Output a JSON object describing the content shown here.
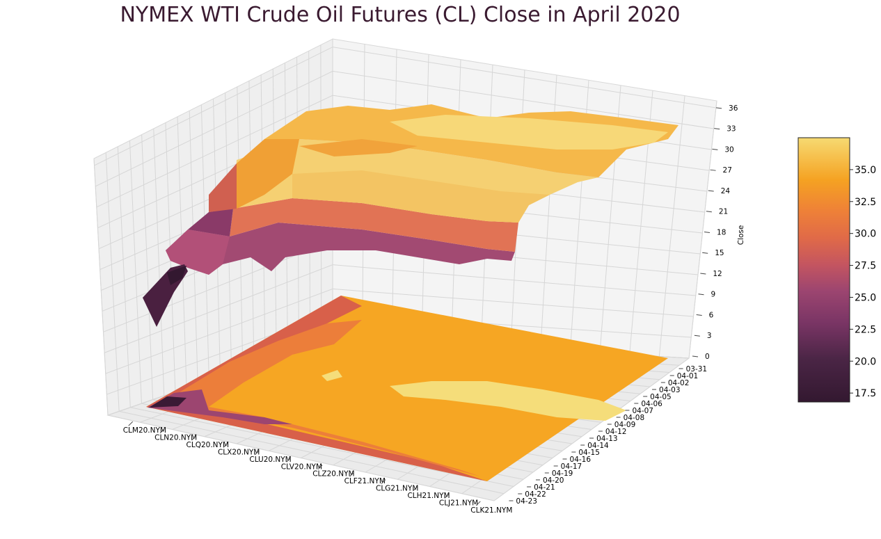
{
  "chart_data": {
    "type": "surface3d",
    "title": "NYMEX WTI Crude Oil Futures (CL) Close in April 2020",
    "zlabel": "Close",
    "xlabel": "",
    "ylabel": "",
    "contracts": [
      "CLM20.NYM",
      "CLN20.NYM",
      "CLQ20.NYM",
      "CLX20.NYM",
      "CLU20.NYM",
      "CLV20.NYM",
      "CLZ20.NYM",
      "CLF21.NYM",
      "CLG21.NYM",
      "CLH21.NYM",
      "CLJ21.NYM",
      "CLK21.NYM"
    ],
    "dates": [
      "03-31",
      "04-01",
      "04-02",
      "04-03",
      "04-05",
      "04-06",
      "04-07",
      "04-08",
      "04-09",
      "04-12",
      "04-13",
      "04-14",
      "04-15",
      "04-16",
      "04-17",
      "04-19",
      "04-20",
      "04-21",
      "04-22",
      "04-23"
    ],
    "zlim": [
      0,
      37
    ],
    "z_ticks": [
      "0",
      "3",
      "6",
      "9",
      "12",
      "15",
      "18",
      "21",
      "24",
      "27",
      "30",
      "33",
      "36"
    ],
    "colorbar": {
      "range": [
        16.8,
        37.5
      ],
      "ticks": [
        "17.5",
        "20.0",
        "22.5",
        "25.0",
        "27.5",
        "30.0",
        "32.5",
        "35.0"
      ],
      "colormap": "inferno-like"
    },
    "grid": true
  }
}
